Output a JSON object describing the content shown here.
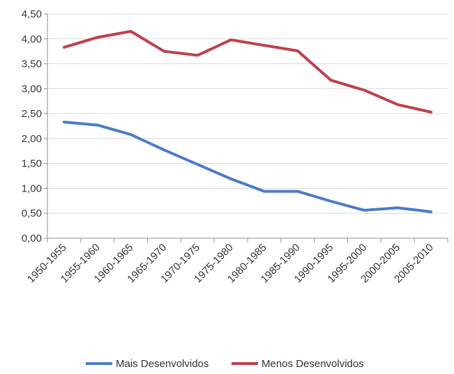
{
  "chart_data": {
    "type": "line",
    "title": "",
    "xlabel": "",
    "ylabel": "",
    "categories": [
      "1950-1955",
      "1955-1960",
      "1960-1965",
      "1965-1970",
      "1970-1975",
      "1975-1980",
      "1980-1985",
      "1985-1990",
      "1990-1995",
      "1995-2000",
      "2000-2005",
      "2005-2010"
    ],
    "ylim": [
      0,
      4.5
    ],
    "yticks": [
      "0,00",
      "0,50",
      "1,00",
      "1,50",
      "2,00",
      "2,50",
      "3,00",
      "3,50",
      "4,00",
      "4,50"
    ],
    "grid": true,
    "legend_position": "bottom",
    "series": [
      {
        "name": "Mais Desenvolvidos",
        "color": "#4a7cc7",
        "values": [
          2.33,
          2.27,
          2.08,
          1.77,
          1.48,
          1.19,
          0.94,
          0.94,
          0.74,
          0.56,
          0.61,
          0.53
        ]
      },
      {
        "name": "Menos Desenvolvidos",
        "color": "#c0404a",
        "values": [
          3.83,
          4.03,
          4.15,
          3.75,
          3.67,
          3.98,
          3.87,
          3.76,
          3.17,
          2.97,
          2.68,
          2.53
        ]
      }
    ]
  }
}
